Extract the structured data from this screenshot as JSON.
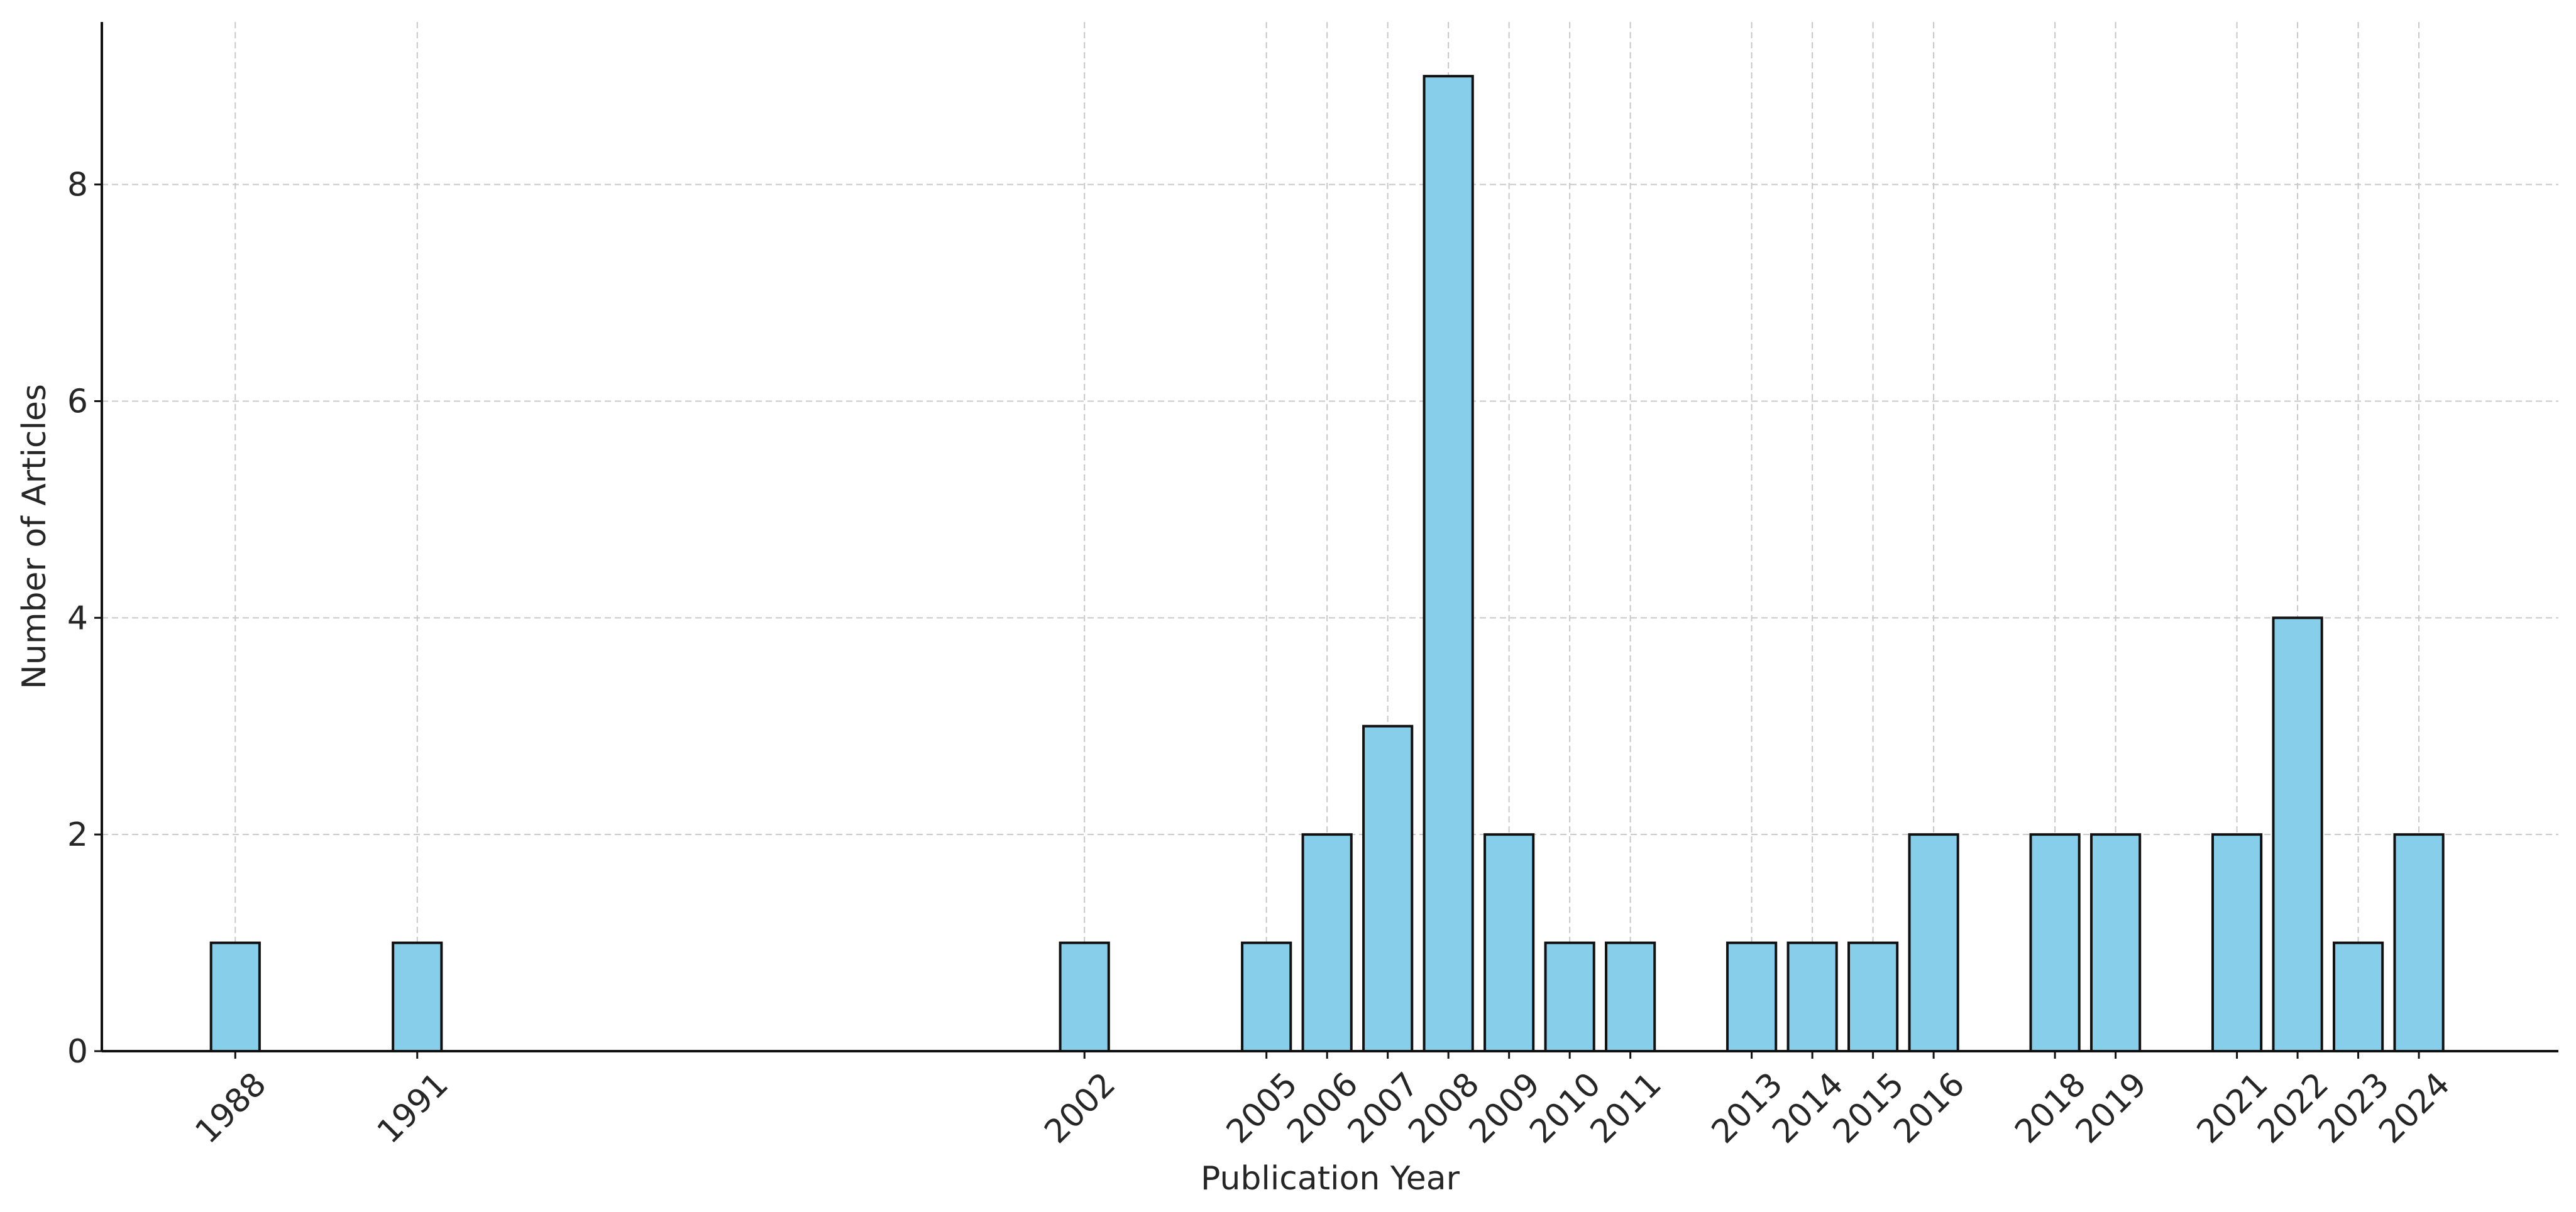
{
  "colors": {
    "bar_fill": "#87CEEB",
    "bar_edge": "#111111",
    "grid": "#c8c8c8",
    "axis": "#111111",
    "text": "#262626",
    "background": "#ffffff"
  },
  "chart_data": {
    "type": "bar",
    "title": "",
    "xlabel": "Publication Year",
    "ylabel": "Number of Articles",
    "x_axis_type": "numeric-year",
    "xlim": [
      1985.8,
      2026.3
    ],
    "ylim": [
      0,
      9.5
    ],
    "y_ticks": [
      0,
      2,
      4,
      6,
      8
    ],
    "grid": true,
    "grid_style": "dashed",
    "legend": "none",
    "x_tick_rotation_deg": 45,
    "categories": [
      "1988",
      "1991",
      "2002",
      "2005",
      "2006",
      "2007",
      "2008",
      "2009",
      "2010",
      "2011",
      "2013",
      "2014",
      "2015",
      "2016",
      "2018",
      "2019",
      "2021",
      "2022",
      "2023",
      "2024"
    ],
    "values": [
      1,
      1,
      1,
      1,
      2,
      3,
      9,
      2,
      1,
      1,
      1,
      1,
      1,
      2,
      2,
      2,
      2,
      4,
      1,
      2
    ]
  }
}
